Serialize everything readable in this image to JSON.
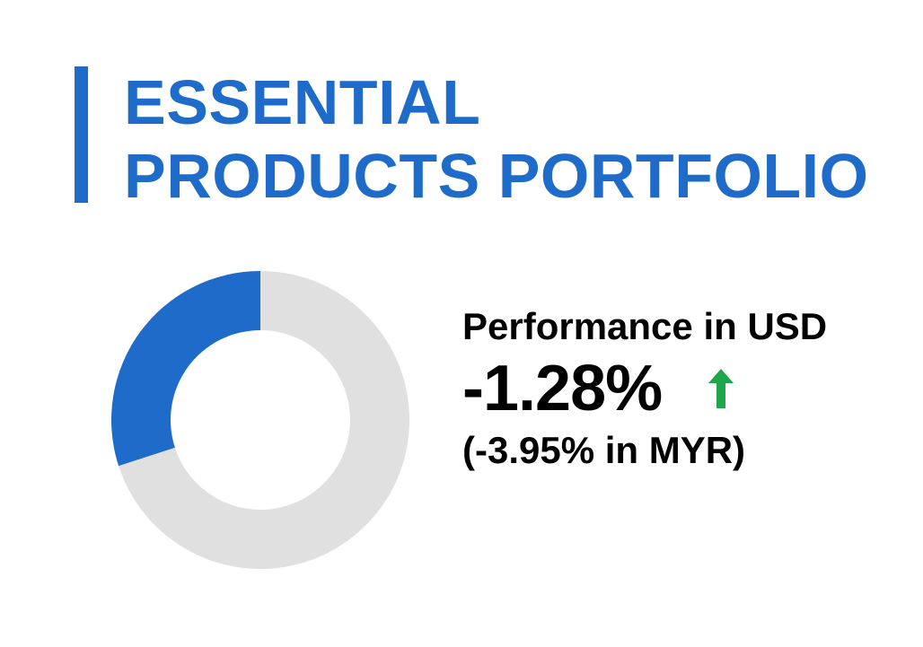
{
  "header": {
    "title_line1": "ESSENTIAL",
    "title_line2": "PRODUCTS PORTFOLIO",
    "accent_color": "#1f6bc9"
  },
  "performance": {
    "label": "Performance in USD",
    "value": "-1.28%",
    "sub_value": "(-3.95% in MYR)",
    "trend_icon": "arrow-up-icon",
    "trend_color": "#20a64a"
  },
  "chart_data": {
    "type": "pie",
    "donut": true,
    "slices": [
      {
        "value": 30,
        "color": "#1f6bc9"
      },
      {
        "value": 70,
        "color": "#e0e0e0"
      }
    ],
    "start_angle_deg": 0,
    "direction": "counterclockwise"
  }
}
